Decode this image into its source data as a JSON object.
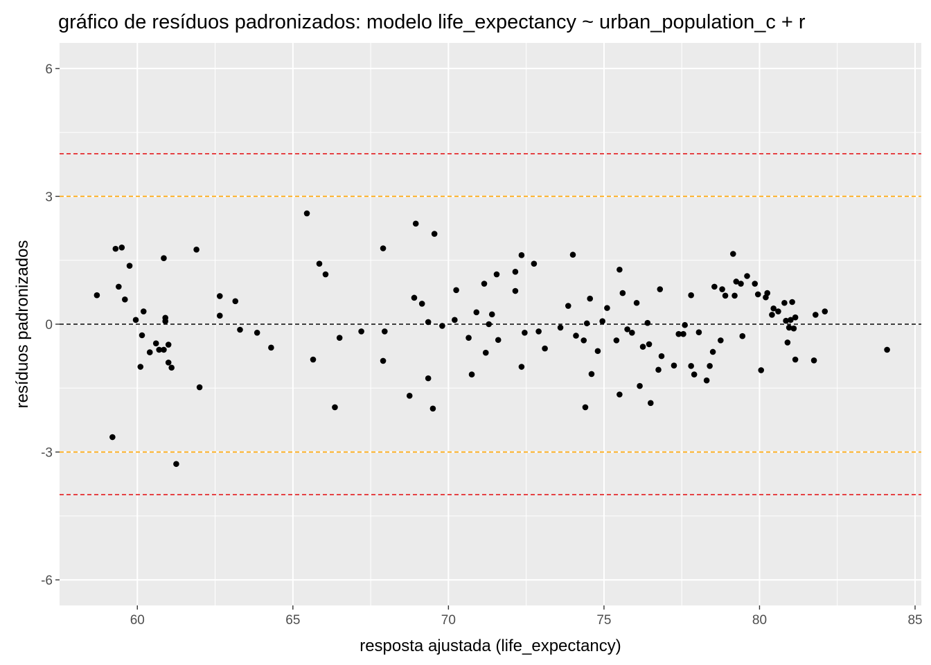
{
  "chart_data": {
    "type": "scatter",
    "title": "gráfico de resíduos padronizados: modelo life_expectancy ~ urban_population_c + r",
    "xlabel": "resposta ajustada (life_expectancy)",
    "ylabel": "resíduos padronizados",
    "xlim": [
      57.5,
      85.2
    ],
    "ylim": [
      -6.6,
      6.6
    ],
    "x_ticks": [
      60,
      65,
      70,
      75,
      80,
      85
    ],
    "y_ticks": [
      6,
      3,
      0,
      -3,
      -6
    ],
    "grid": true,
    "background": "#ebebeb",
    "point_color": "#000000",
    "reference_lines": [
      {
        "y": 4,
        "color": "#e41a1c",
        "style": "dashed"
      },
      {
        "y": 3,
        "color": "#ffa500",
        "style": "dashed"
      },
      {
        "y": 0,
        "color": "#000000",
        "style": "dashed"
      },
      {
        "y": -3,
        "color": "#ffa500",
        "style": "dashed"
      },
      {
        "y": -4,
        "color": "#e41a1c",
        "style": "dashed"
      }
    ],
    "points": [
      [
        58.7,
        0.68
      ],
      [
        59.2,
        -2.65
      ],
      [
        59.3,
        1.77
      ],
      [
        59.4,
        0.88
      ],
      [
        59.5,
        1.8
      ],
      [
        59.6,
        0.58
      ],
      [
        59.75,
        1.37
      ],
      [
        59.95,
        0.1
      ],
      [
        60.1,
        -1.0
      ],
      [
        60.15,
        -0.26
      ],
      [
        60.2,
        0.3
      ],
      [
        60.4,
        -0.66
      ],
      [
        60.6,
        -0.45
      ],
      [
        60.7,
        -0.6
      ],
      [
        60.85,
        1.55
      ],
      [
        60.85,
        -0.6
      ],
      [
        60.9,
        0.15
      ],
      [
        60.9,
        0.07
      ],
      [
        61.0,
        -0.48
      ],
      [
        61.0,
        -0.9
      ],
      [
        61.1,
        -1.02
      ],
      [
        61.25,
        -3.28
      ],
      [
        61.9,
        1.75
      ],
      [
        62.0,
        -1.48
      ],
      [
        62.65,
        0.66
      ],
      [
        62.65,
        0.2
      ],
      [
        63.15,
        0.54
      ],
      [
        63.3,
        -0.13
      ],
      [
        63.85,
        -0.2
      ],
      [
        64.3,
        -0.55
      ],
      [
        65.45,
        2.6
      ],
      [
        65.65,
        -0.83
      ],
      [
        65.85,
        1.42
      ],
      [
        66.05,
        1.17
      ],
      [
        66.35,
        -1.95
      ],
      [
        66.5,
        -0.32
      ],
      [
        67.2,
        -0.17
      ],
      [
        67.9,
        1.78
      ],
      [
        67.9,
        -0.86
      ],
      [
        67.95,
        -0.17
      ],
      [
        68.75,
        -1.68
      ],
      [
        68.9,
        0.62
      ],
      [
        68.95,
        2.36
      ],
      [
        69.15,
        0.48
      ],
      [
        69.35,
        -1.27
      ],
      [
        69.35,
        0.05
      ],
      [
        69.5,
        -1.98
      ],
      [
        69.55,
        2.12
      ],
      [
        69.8,
        -0.04
      ],
      [
        70.2,
        0.1
      ],
      [
        70.25,
        0.8
      ],
      [
        70.65,
        -0.32
      ],
      [
        70.75,
        -1.18
      ],
      [
        70.9,
        0.28
      ],
      [
        71.15,
        0.95
      ],
      [
        71.2,
        -0.67
      ],
      [
        71.3,
        0.0
      ],
      [
        71.4,
        0.23
      ],
      [
        71.6,
        -0.37
      ],
      [
        71.55,
        1.17
      ],
      [
        72.15,
        1.23
      ],
      [
        72.15,
        0.78
      ],
      [
        72.35,
        1.62
      ],
      [
        72.35,
        -1.0
      ],
      [
        72.45,
        -0.2
      ],
      [
        72.75,
        1.42
      ],
      [
        72.9,
        -0.17
      ],
      [
        73.1,
        -0.57
      ],
      [
        73.6,
        -0.08
      ],
      [
        73.85,
        0.43
      ],
      [
        74.0,
        1.63
      ],
      [
        74.1,
        -0.27
      ],
      [
        74.35,
        -0.38
      ],
      [
        74.4,
        -1.95
      ],
      [
        74.45,
        0.02
      ],
      [
        74.55,
        0.6
      ],
      [
        74.6,
        -1.17
      ],
      [
        74.8,
        -0.63
      ],
      [
        74.95,
        0.07
      ],
      [
        75.1,
        0.38
      ],
      [
        75.4,
        -0.38
      ],
      [
        75.5,
        -1.65
      ],
      [
        75.5,
        1.28
      ],
      [
        75.6,
        0.73
      ],
      [
        75.75,
        -0.12
      ],
      [
        75.9,
        -0.2
      ],
      [
        76.05,
        0.5
      ],
      [
        76.15,
        -1.45
      ],
      [
        76.25,
        -0.53
      ],
      [
        76.4,
        0.03
      ],
      [
        76.45,
        -0.47
      ],
      [
        76.5,
        -1.85
      ],
      [
        76.75,
        -1.07
      ],
      [
        76.8,
        0.82
      ],
      [
        76.85,
        -0.75
      ],
      [
        77.25,
        -0.97
      ],
      [
        77.4,
        -0.23
      ],
      [
        77.55,
        -0.23
      ],
      [
        77.6,
        -0.02
      ],
      [
        77.8,
        0.68
      ],
      [
        77.8,
        -0.98
      ],
      [
        77.9,
        -1.18
      ],
      [
        78.05,
        -0.19
      ],
      [
        78.3,
        -1.32
      ],
      [
        78.4,
        -0.98
      ],
      [
        78.5,
        -0.65
      ],
      [
        78.55,
        0.88
      ],
      [
        78.75,
        -0.38
      ],
      [
        78.8,
        0.82
      ],
      [
        78.9,
        0.67
      ],
      [
        79.15,
        1.65
      ],
      [
        79.2,
        0.67
      ],
      [
        79.25,
        1.0
      ],
      [
        79.4,
        0.95
      ],
      [
        79.45,
        -0.28
      ],
      [
        79.6,
        1.13
      ],
      [
        79.85,
        0.95
      ],
      [
        79.95,
        0.7
      ],
      [
        80.05,
        -1.08
      ],
      [
        80.2,
        0.63
      ],
      [
        80.25,
        0.73
      ],
      [
        80.4,
        0.22
      ],
      [
        80.45,
        0.37
      ],
      [
        80.6,
        0.3
      ],
      [
        80.8,
        0.5
      ],
      [
        80.85,
        0.08
      ],
      [
        80.9,
        -0.43
      ],
      [
        80.95,
        -0.08
      ],
      [
        81.0,
        0.1
      ],
      [
        81.05,
        0.52
      ],
      [
        81.1,
        -0.1
      ],
      [
        81.15,
        0.16
      ],
      [
        81.15,
        -0.83
      ],
      [
        81.75,
        -0.85
      ],
      [
        81.8,
        0.22
      ],
      [
        82.1,
        0.3
      ],
      [
        84.1,
        -0.6
      ]
    ]
  }
}
